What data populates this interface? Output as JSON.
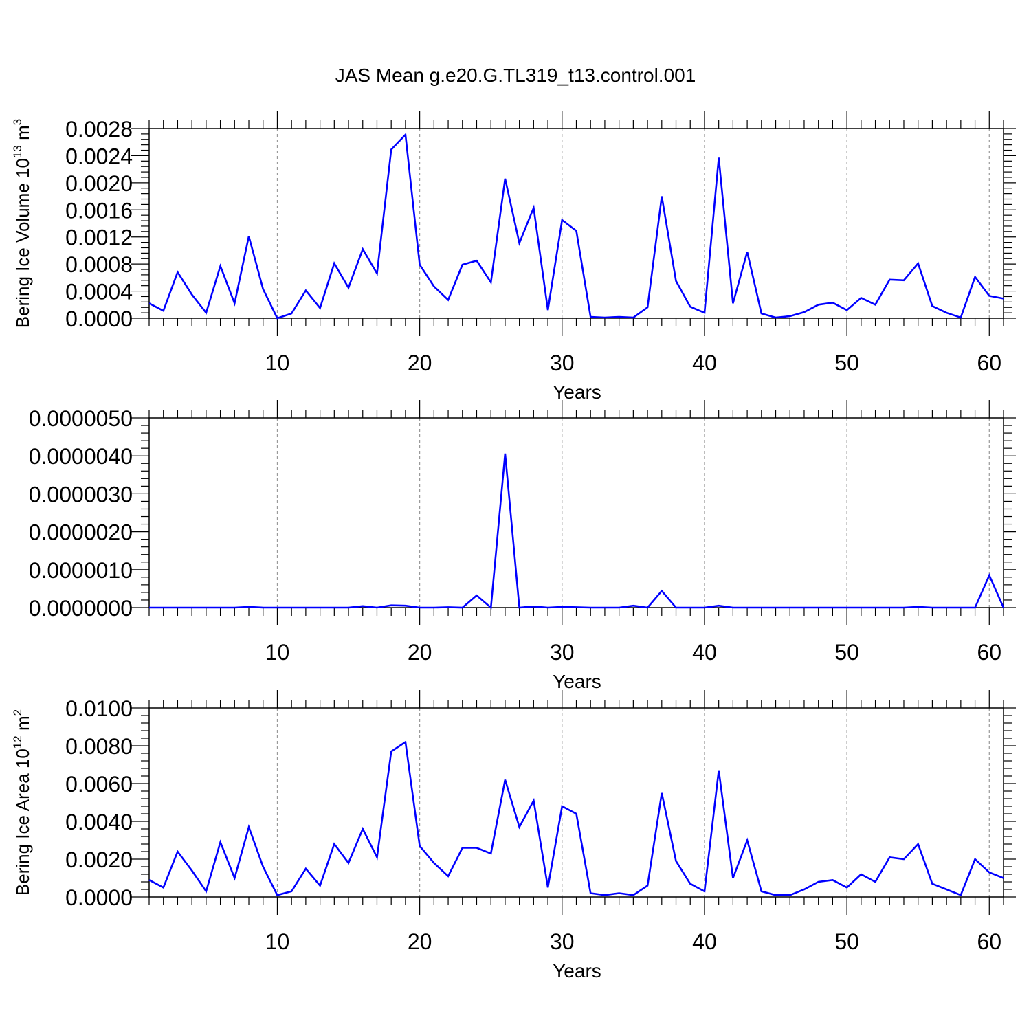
{
  "title": "JAS Mean g.e20.G.TL319_t13.control.001",
  "chart_data": [
    {
      "type": "line",
      "xlabel": "Years",
      "ylabel": "Bering Ice Volume 10",
      "ylabel_exponent": "13",
      "ylabel_unit": "m",
      "ylabel_unit_exponent": "3",
      "xlim": [
        1,
        61
      ],
      "ylim": [
        0,
        0.0028
      ],
      "xticks": [
        10,
        20,
        30,
        40,
        50,
        60
      ],
      "xtick_labels": [
        "10",
        "20",
        "30",
        "40",
        "50",
        "60"
      ],
      "yticks": [
        0,
        0.0004,
        0.0008,
        0.0012,
        0.0016,
        0.002,
        0.0024,
        0.0028
      ],
      "ytick_labels": [
        "0.0000",
        "0.0004",
        "0.0008",
        "0.0012",
        "0.0016",
        "0.0020",
        "0.0024",
        "0.0028"
      ],
      "grid": "vertical dashed at major x ticks",
      "line_color": "#0000ff",
      "x": [
        1,
        2,
        3,
        4,
        5,
        6,
        7,
        8,
        9,
        10,
        11,
        12,
        13,
        14,
        15,
        16,
        17,
        18,
        19,
        20,
        21,
        22,
        23,
        24,
        25,
        26,
        27,
        28,
        29,
        30,
        31,
        32,
        33,
        34,
        35,
        36,
        37,
        38,
        39,
        40,
        41,
        42,
        43,
        44,
        45,
        46,
        47,
        48,
        49,
        50,
        51,
        52,
        53,
        54,
        55,
        56,
        57,
        58,
        59,
        60,
        61
      ],
      "values": [
        0.00022,
        0.00011,
        0.00068,
        0.00035,
        8e-05,
        0.00077,
        0.00022,
        0.00121,
        0.00043,
        0.0,
        7e-05,
        0.00041,
        0.00015,
        0.00081,
        0.00045,
        0.00102,
        0.00066,
        0.00249,
        0.00271,
        0.00079,
        0.00047,
        0.00027,
        0.00079,
        0.00085,
        0.00053,
        0.00206,
        0.00111,
        0.00163,
        0.00012,
        0.00145,
        0.00129,
        2e-05,
        1e-05,
        2e-05,
        1e-05,
        0.00016,
        0.0018,
        0.00055,
        0.00017,
        8e-05,
        0.00237,
        0.00022,
        0.00098,
        7e-05,
        1e-05,
        3e-05,
        9e-05,
        0.0002,
        0.00023,
        0.00012,
        0.0003,
        0.0002,
        0.00057,
        0.00056,
        0.00081,
        0.00018,
        8e-05,
        1e-05,
        0.00061,
        0.00033,
        0.00029
      ]
    },
    {
      "type": "line",
      "xlabel": "Years",
      "ylabel": "",
      "xlim": [
        1,
        61
      ],
      "ylim": [
        0,
        5e-06
      ],
      "xticks": [
        10,
        20,
        30,
        40,
        50,
        60
      ],
      "xtick_labels": [
        "10",
        "20",
        "30",
        "40",
        "50",
        "60"
      ],
      "yticks": [
        0,
        1e-06,
        2e-06,
        3e-06,
        4e-06,
        5e-06
      ],
      "ytick_labels": [
        "0.0000000",
        "0.0000010",
        "0.0000020",
        "0.0000030",
        "0.0000040",
        "0.0000050"
      ],
      "grid": "vertical dashed at major x ticks",
      "line_color": "#0000ff",
      "x": [
        1,
        2,
        3,
        4,
        5,
        6,
        7,
        8,
        9,
        10,
        11,
        12,
        13,
        14,
        15,
        16,
        17,
        18,
        19,
        20,
        21,
        22,
        23,
        24,
        25,
        26,
        27,
        28,
        29,
        30,
        31,
        32,
        33,
        34,
        35,
        36,
        37,
        38,
        39,
        40,
        41,
        42,
        43,
        44,
        45,
        46,
        47,
        48,
        49,
        50,
        51,
        52,
        53,
        54,
        55,
        56,
        57,
        58,
        59,
        60,
        61
      ],
      "values": [
        0,
        0,
        0,
        0,
        0,
        0,
        0,
        2e-08,
        0,
        0,
        0,
        0,
        0,
        0,
        0,
        4e-08,
        0,
        6e-08,
        5e-08,
        0,
        0,
        1e-08,
        0,
        3.2e-07,
        0,
        4.06e-06,
        0,
        3e-08,
        0,
        2e-08,
        1e-08,
        0,
        0,
        0,
        5e-08,
        0,
        4.4e-07,
        0,
        0,
        0,
        5e-08,
        0,
        0,
        0,
        0,
        0,
        0,
        0,
        0,
        0,
        0,
        0,
        0,
        0,
        2e-08,
        0,
        0,
        0,
        0,
        8.5e-07,
        0
      ]
    },
    {
      "type": "line",
      "xlabel": "Years",
      "ylabel": "Bering Ice Area 10",
      "ylabel_exponent": "12",
      "ylabel_unit": "m",
      "ylabel_unit_exponent": "2",
      "xlim": [
        1,
        61
      ],
      "ylim": [
        0,
        0.01
      ],
      "xticks": [
        10,
        20,
        30,
        40,
        50,
        60
      ],
      "xtick_labels": [
        "10",
        "20",
        "30",
        "40",
        "50",
        "60"
      ],
      "yticks": [
        0,
        0.002,
        0.004,
        0.006,
        0.008,
        0.01
      ],
      "ytick_labels": [
        "0.0000",
        "0.0020",
        "0.0040",
        "0.0060",
        "0.0080",
        "0.0100"
      ],
      "grid": "vertical dashed at major x ticks",
      "line_color": "#0000ff",
      "x": [
        1,
        2,
        3,
        4,
        5,
        6,
        7,
        8,
        9,
        10,
        11,
        12,
        13,
        14,
        15,
        16,
        17,
        18,
        19,
        20,
        21,
        22,
        23,
        24,
        25,
        26,
        27,
        28,
        29,
        30,
        31,
        32,
        33,
        34,
        35,
        36,
        37,
        38,
        39,
        40,
        41,
        42,
        43,
        44,
        45,
        46,
        47,
        48,
        49,
        50,
        51,
        52,
        53,
        54,
        55,
        56,
        57,
        58,
        59,
        60,
        61
      ],
      "values": [
        0.0009,
        0.0005,
        0.0024,
        0.0014,
        0.0003,
        0.0029,
        0.001,
        0.0037,
        0.0016,
        0.0001,
        0.0003,
        0.0015,
        0.0006,
        0.0028,
        0.0018,
        0.0036,
        0.0021,
        0.0077,
        0.0082,
        0.0027,
        0.0018,
        0.0011,
        0.0026,
        0.0026,
        0.0023,
        0.0062,
        0.0037,
        0.0051,
        0.0005,
        0.0048,
        0.0044,
        0.0002,
        0.0001,
        0.0002,
        0.0001,
        0.0006,
        0.0055,
        0.0019,
        0.0007,
        0.0003,
        0.0067,
        0.001,
        0.003,
        0.0003,
        0.0001,
        0.0001,
        0.0004,
        0.0008,
        0.0009,
        0.0005,
        0.0012,
        0.0008,
        0.0021,
        0.002,
        0.0028,
        0.0007,
        0.0004,
        0.0001,
        0.002,
        0.0013,
        0.001
      ]
    }
  ]
}
